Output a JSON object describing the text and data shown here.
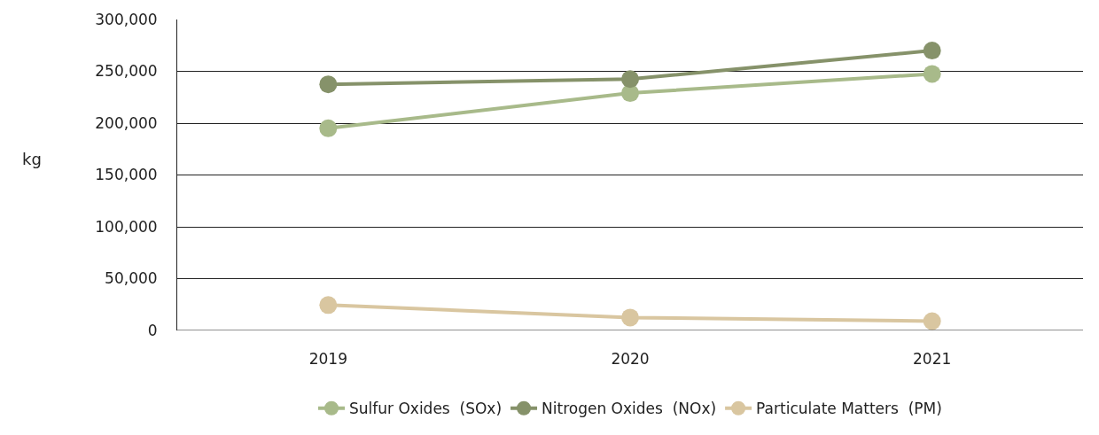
{
  "chart_data": {
    "type": "line",
    "ylabel": "kg",
    "categories": [
      "2019",
      "2020",
      "2021"
    ],
    "series": [
      {
        "name": "Sulfur Oxides  (SOx)",
        "color": "#a8ba8a",
        "values": [
          195000,
          229000,
          247500
        ]
      },
      {
        "name": "Nitrogen Oxides  (NOx)",
        "color": "#86926a",
        "values": [
          237500,
          242500,
          270000
        ]
      },
      {
        "name": "Particulate Matters  (PM)",
        "color": "#d9c6a0",
        "values": [
          24500,
          12500,
          9000
        ]
      }
    ],
    "ylim": [
      0,
      300000
    ],
    "yticks": [
      {
        "value": 0,
        "label": "0"
      },
      {
        "value": 50000,
        "label": "50,000"
      },
      {
        "value": 100000,
        "label": "100,000"
      },
      {
        "value": 150000,
        "label": "150,000"
      },
      {
        "value": 200000,
        "label": "200,000"
      },
      {
        "value": 250000,
        "label": "250,000"
      },
      {
        "value": 300000,
        "label": "300,000"
      }
    ],
    "grid": "y",
    "legend": "bottom",
    "marker": "circle",
    "line_style": "solid"
  }
}
